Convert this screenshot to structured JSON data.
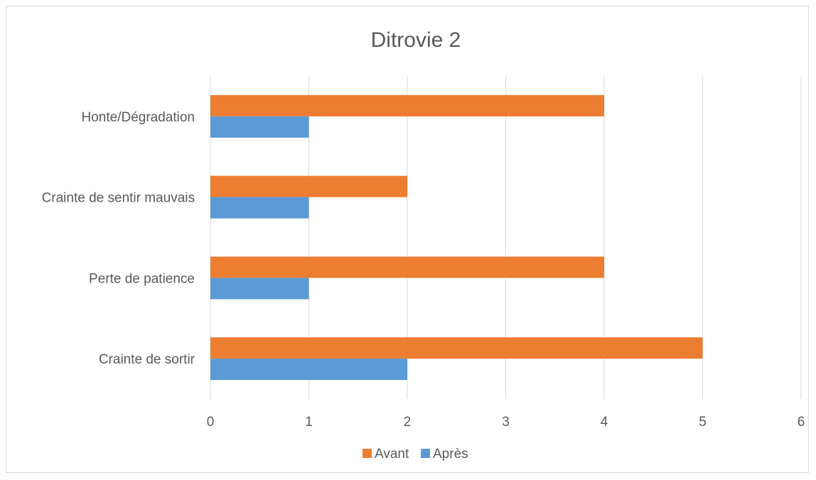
{
  "chart_data": {
    "type": "bar",
    "orientation": "horizontal",
    "title": "Ditrovie 2",
    "xlabel": "",
    "ylabel": "",
    "categories": [
      "Honte/Dégradation",
      "Crainte de sentir mauvais",
      "Perte de patience",
      "Crainte de sortir"
    ],
    "series": [
      {
        "name": "Avant",
        "color": "#ED7D31",
        "values": [
          4,
          2,
          4,
          5
        ]
      },
      {
        "name": "Après",
        "color": "#5B9BD5",
        "values": [
          1,
          1,
          1,
          2
        ]
      }
    ],
    "xlim": [
      0,
      6
    ],
    "xticks": [
      "0",
      "1",
      "2",
      "3",
      "4",
      "5",
      "6"
    ],
    "grid": "vertical",
    "legend": "bottom"
  }
}
